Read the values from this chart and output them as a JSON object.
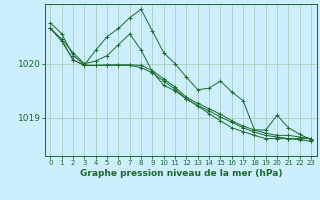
{
  "title": "Graphe pression niveau de la mer (hPa)",
  "bg_color": "#cceeff",
  "grid_color": "#aaccbb",
  "line_color": "#1a6b2a",
  "marker_color": "#1a6b2a",
  "x_ticks": [
    0,
    1,
    2,
    3,
    4,
    5,
    6,
    7,
    8,
    9,
    10,
    11,
    12,
    13,
    14,
    15,
    16,
    17,
    18,
    19,
    20,
    21,
    22,
    23
  ],
  "y_ticks": [
    1019,
    1020
  ],
  "xlim": [
    -0.5,
    23.5
  ],
  "ylim": [
    1018.3,
    1021.1
  ],
  "series": [
    [
      1020.65,
      1020.45,
      1020.2,
      1020.0,
      1020.05,
      1020.15,
      1020.35,
      1020.55,
      1020.25,
      1019.85,
      1019.6,
      1019.5,
      1019.35,
      1019.22,
      1019.08,
      1018.95,
      1018.82,
      1018.75,
      1018.68,
      1018.62,
      1018.62,
      1018.62,
      1018.62,
      1018.62
    ],
    [
      1020.75,
      1020.55,
      1020.15,
      1019.98,
      1020.25,
      1020.5,
      1020.65,
      1020.85,
      1021.0,
      1020.6,
      1020.2,
      1020.0,
      1019.75,
      1019.52,
      1019.55,
      1019.68,
      1019.48,
      1019.32,
      1018.78,
      1018.78,
      1019.05,
      1018.82,
      1018.7,
      1018.6
    ],
    [
      1020.65,
      1020.42,
      1020.07,
      1019.97,
      1019.97,
      1019.98,
      1019.98,
      1019.98,
      1019.97,
      1019.87,
      1019.72,
      1019.57,
      1019.38,
      1019.27,
      1019.17,
      1019.07,
      1018.95,
      1018.85,
      1018.78,
      1018.72,
      1018.68,
      1018.68,
      1018.65,
      1018.62
    ],
    [
      1020.65,
      1020.42,
      1020.07,
      1019.97,
      1019.97,
      1019.97,
      1019.97,
      1019.97,
      1019.93,
      1019.83,
      1019.68,
      1019.53,
      1019.35,
      1019.23,
      1019.13,
      1019.02,
      1018.92,
      1018.82,
      1018.74,
      1018.68,
      1018.65,
      1018.62,
      1018.6,
      1018.57
    ]
  ]
}
